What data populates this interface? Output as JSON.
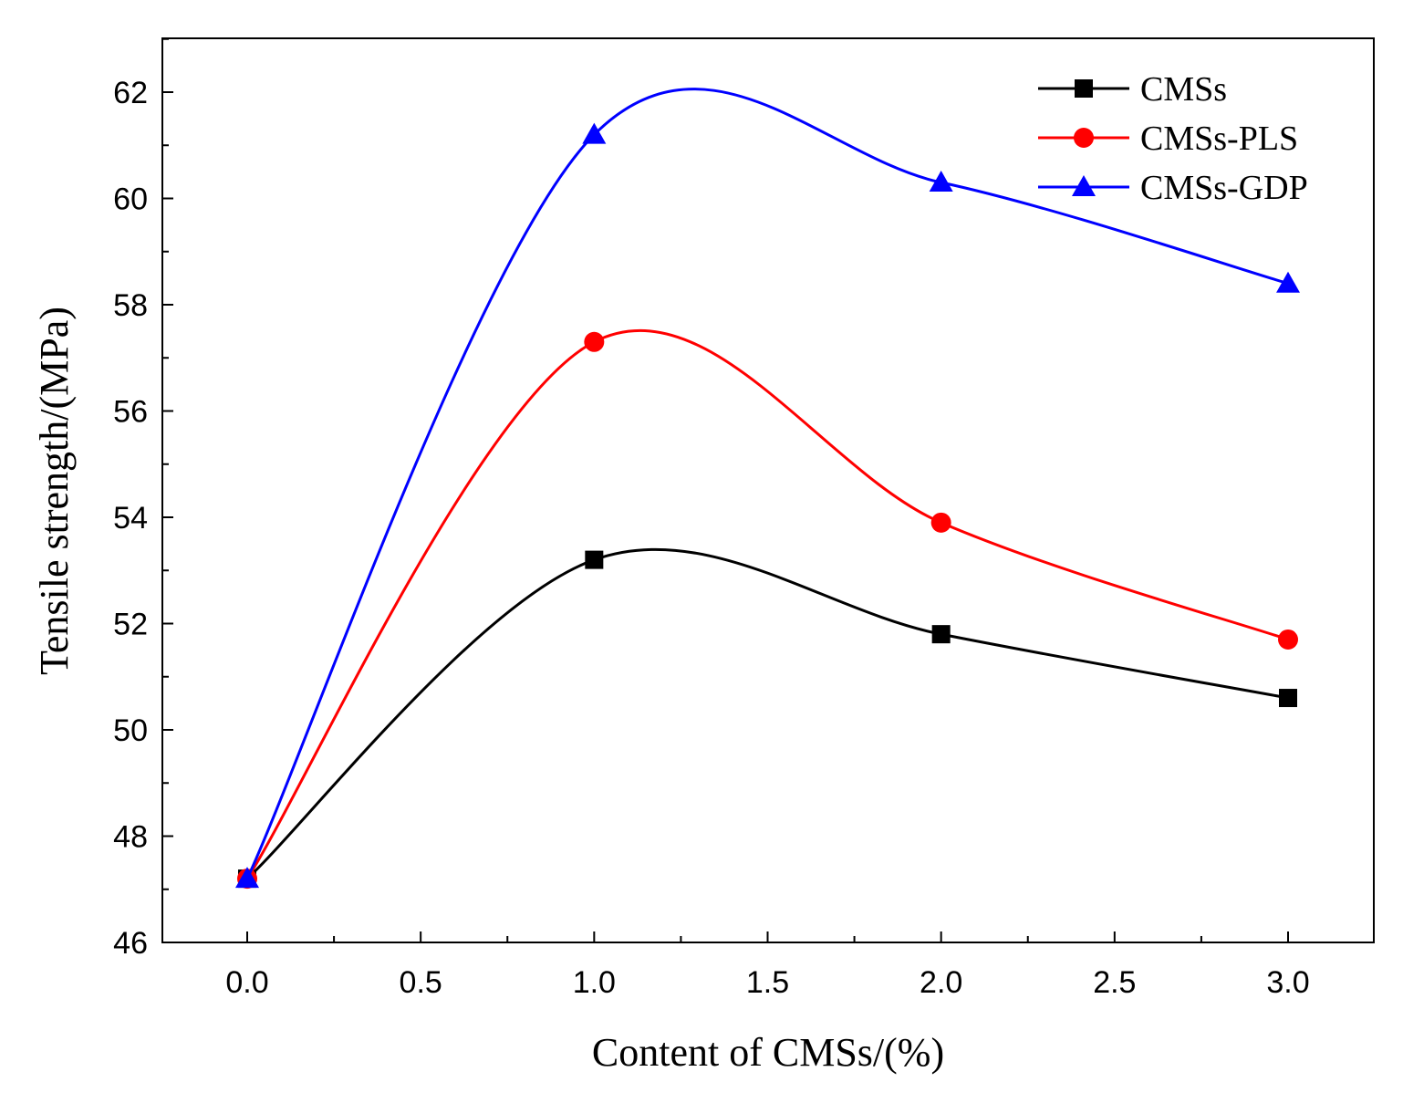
{
  "chart_data": {
    "type": "line",
    "title": "",
    "xlabel": "Content of CMSs/(%)",
    "ylabel": "Tensile strength/(MPa)",
    "xlim": [
      -0.25,
      3.25
    ],
    "ylim": [
      46,
      63
    ],
    "xticks": [
      "0.0",
      "0.5",
      "1.0",
      "1.5",
      "2.0",
      "2.5",
      "3.0"
    ],
    "yticks": [
      "46",
      "48",
      "50",
      "52",
      "54",
      "56",
      "58",
      "60",
      "62"
    ],
    "x": [
      0,
      1,
      2,
      3
    ],
    "series": [
      {
        "name": "CMSs",
        "color": "#000000",
        "marker": "square",
        "values": [
          47.2,
          53.2,
          51.8,
          50.6
        ]
      },
      {
        "name": "CMSs-PLS",
        "color": "#ff0000",
        "marker": "circle",
        "values": [
          47.2,
          57.3,
          53.9,
          51.7
        ]
      },
      {
        "name": "CMSs-GDP",
        "color": "#0000ff",
        "marker": "triangle",
        "values": [
          47.2,
          61.2,
          60.3,
          58.4
        ]
      }
    ],
    "legend_position": "top-right",
    "grid": false
  }
}
